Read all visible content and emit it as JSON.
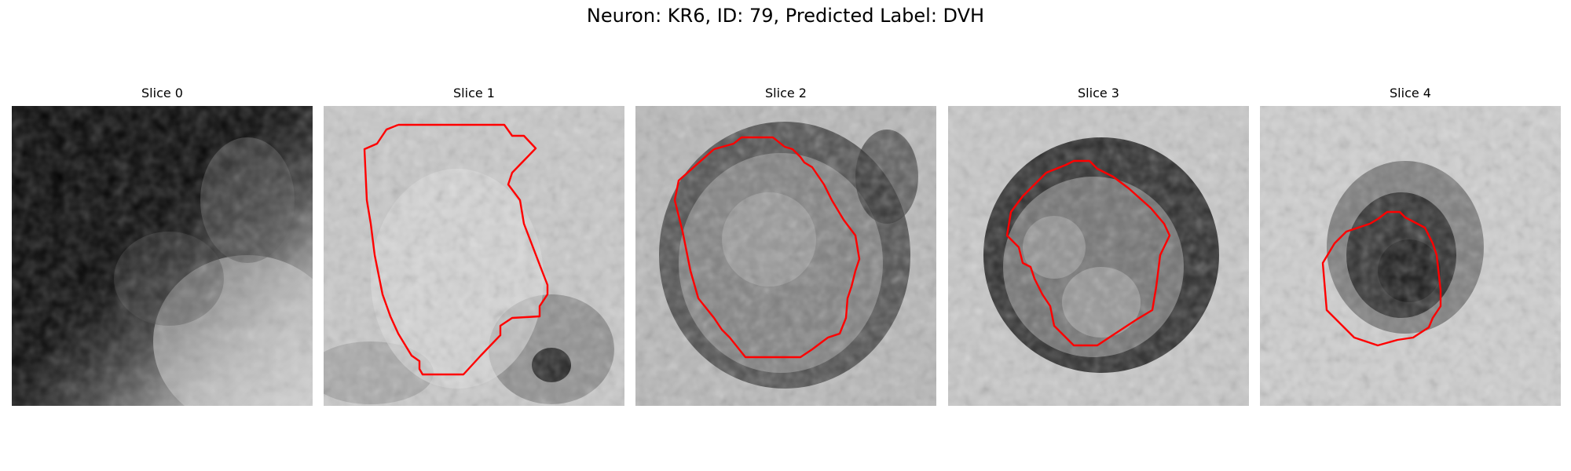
{
  "figure": {
    "title": "Neuron: KR6, ID: 79, Predicted Label: DVH",
    "contour_color": "#ff0000",
    "panels": [
      {
        "title": "Slice 0",
        "image": "grayscale EM crop: dark upper-left region, brighter textured tissue lower-right",
        "has_contour": false
      },
      {
        "title": "Slice 1",
        "image": "grayscale EM crop: light textured cell region outlined in red",
        "has_contour": true
      },
      {
        "title": "Slice 2",
        "image": "grayscale EM crop: round nucleus with dark rim outlined in red",
        "has_contour": true
      },
      {
        "title": "Slice 3",
        "image": "grayscale EM crop: round nucleus with dark ring outlined in red",
        "has_contour": true
      },
      {
        "title": "Slice 4",
        "image": "grayscale EM crop: small dark blob outlined in red",
        "has_contour": true
      }
    ]
  }
}
